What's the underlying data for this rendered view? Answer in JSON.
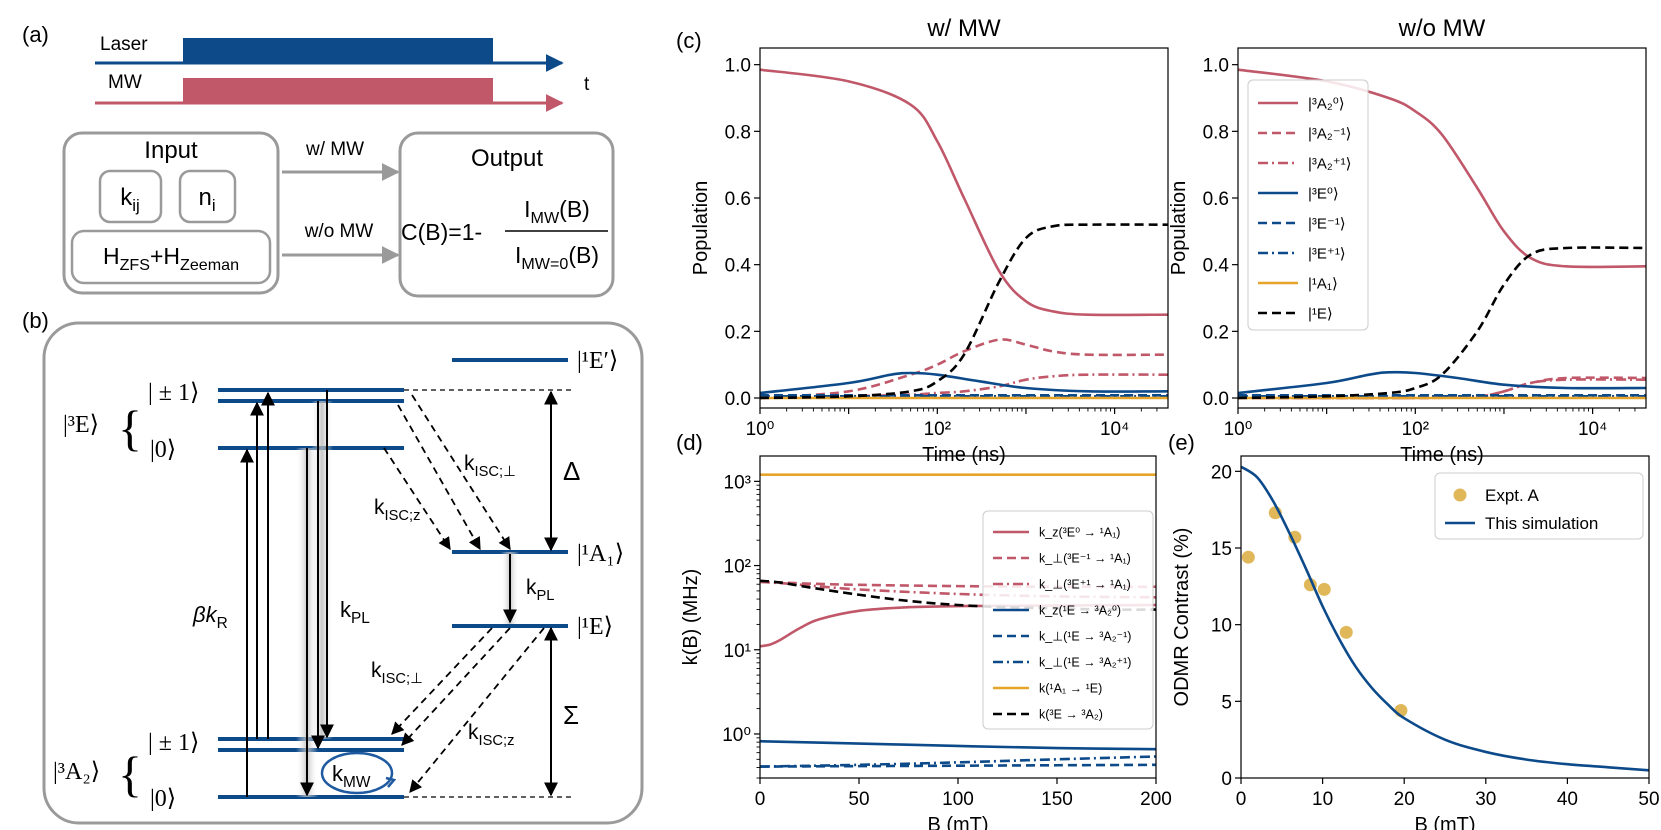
{
  "panel_labels": {
    "a": "(a)",
    "b": "(b)",
    "c": "(c)",
    "d": "(d)",
    "e": "(e)"
  },
  "panel_a": {
    "laser_label": "Laser",
    "mw_label": "MW",
    "time_label": "t",
    "input_title": "Input",
    "k_main": "k",
    "k_sub": "ij",
    "n_main": "n",
    "n_sub": "i",
    "h_main1": "H",
    "h_sub1": "ZFS",
    "h_plus": "+H",
    "h_sub2": "Zeeman",
    "arrow_with_mw": "w/ MW",
    "arrow_without_mw": "w/o MW",
    "output_title": "Output",
    "formula_left": "C(B)=1-",
    "num_main": "I",
    "num_sub": "MW",
    "num_tail": "(B)",
    "den_main": "I",
    "den_sub": "MW=0",
    "den_tail": "(B)",
    "colors": {
      "laser": "#0d4a8a",
      "mw": "#c0586a",
      "box": "#9a9a9a"
    }
  },
  "panel_b": {
    "lvl_3E": "|³E⟩",
    "lvl_3E_pm1": "| ± 1⟩",
    "lvl_3E_0": "|0⟩",
    "lvl_3A2": "|³A₂⟩",
    "lvl_3A2_pm1": "| ± 1⟩",
    "lvl_3A2_0": "|0⟩",
    "lvl_1Ep": "|¹E′⟩",
    "lvl_1A1": "|¹A₁⟩",
    "lvl_1E": "|¹E⟩",
    "k_isc_perp_top": "k",
    "k_isc_perp_top_sub": "ISC;⊥",
    "k_isc_z_top": "k",
    "k_isc_z_top_sub": "ISC;z",
    "delta": "Δ",
    "sigma": "Σ",
    "beta_kr": "βk",
    "beta_kr_sub": "R",
    "k_pl_left": "k",
    "k_pl_left_sub": "PL",
    "k_pl_right": "k",
    "k_pl_right_sub": "PL",
    "k_isc_perp_bot": "k",
    "k_isc_perp_bot_sub": "ISC;⊥",
    "k_isc_z_bot": "k",
    "k_isc_z_bot_sub": "ISC;z",
    "k_mw": "k",
    "k_mw_sub": "MW",
    "colors": {
      "level": "#0d4a8a"
    }
  },
  "chart_data": [
    {
      "id": "c_with_mw",
      "type": "line",
      "title": "w/ MW",
      "xlabel": "Time (ns)",
      "ylabel": "Population",
      "xscale": "log",
      "xlim": [
        1,
        40000
      ],
      "ylim": [
        -0.03,
        1.05
      ],
      "xticks": [
        1,
        100,
        10000
      ],
      "xtick_labels": [
        "10⁰",
        "10²",
        "10⁴"
      ],
      "yticks": [
        0.0,
        0.2,
        0.4,
        0.6,
        0.8,
        1.0
      ],
      "ytick_labels": [
        "0.0",
        "0.2",
        "0.4",
        "0.6",
        "0.8",
        "1.0"
      ],
      "series": [
        {
          "name": "|³A₂⁰⟩",
          "color": "#c0586a",
          "dash": "solid",
          "x": [
            1,
            10,
            50,
            100,
            200,
            500,
            1000,
            2000,
            5000,
            40000
          ],
          "y": [
            0.985,
            0.95,
            0.88,
            0.77,
            0.6,
            0.38,
            0.29,
            0.26,
            0.25,
            0.25
          ]
        },
        {
          "name": "|³A₂⁻¹⟩",
          "color": "#c0586a",
          "dash": "dash",
          "x": [
            1,
            10,
            50,
            100,
            200,
            500,
            1000,
            2000,
            5000,
            40000
          ],
          "y": [
            0.0,
            0.02,
            0.07,
            0.1,
            0.14,
            0.175,
            0.16,
            0.14,
            0.13,
            0.13
          ]
        },
        {
          "name": "|³A₂⁺¹⟩",
          "color": "#c0586a",
          "dash": "dashdot",
          "x": [
            1,
            10,
            50,
            100,
            200,
            500,
            1000,
            2000,
            5000,
            40000
          ],
          "y": [
            0.0,
            0.005,
            0.01,
            0.015,
            0.02,
            0.035,
            0.055,
            0.065,
            0.07,
            0.07
          ]
        },
        {
          "name": "|³E⁰⟩",
          "color": "#0d4a8a",
          "dash": "solid",
          "x": [
            1,
            10,
            30,
            50,
            100,
            300,
            1000,
            5000,
            40000
          ],
          "y": [
            0.015,
            0.045,
            0.07,
            0.075,
            0.07,
            0.05,
            0.03,
            0.02,
            0.02
          ]
        },
        {
          "name": "|³E⁻¹⟩",
          "color": "#0d4a8a",
          "dash": "dash",
          "x": [
            1,
            100,
            40000
          ],
          "y": [
            0.008,
            0.008,
            0.008
          ]
        },
        {
          "name": "|³E⁺¹⟩",
          "color": "#0d4a8a",
          "dash": "dashdot",
          "x": [
            1,
            100,
            40000
          ],
          "y": [
            0.005,
            0.005,
            0.005
          ]
        },
        {
          "name": "|¹A₁⟩",
          "color": "#e6a52a",
          "dash": "solid",
          "x": [
            1,
            40000
          ],
          "y": [
            0.0,
            0.0
          ]
        },
        {
          "name": "|¹E⟩",
          "color": "#000000",
          "dash": "dash",
          "x": [
            1,
            10,
            50,
            100,
            200,
            500,
            1000,
            2000,
            5000,
            40000
          ],
          "y": [
            0.0,
            0.005,
            0.02,
            0.05,
            0.13,
            0.35,
            0.48,
            0.515,
            0.52,
            0.52
          ]
        }
      ]
    },
    {
      "id": "c_without_mw",
      "type": "line",
      "title": "w/o MW",
      "xlabel": "Time (ns)",
      "ylabel": "Population",
      "xscale": "log",
      "xlim": [
        1,
        40000
      ],
      "ylim": [
        -0.03,
        1.05
      ],
      "xticks": [
        1,
        100,
        10000
      ],
      "xtick_labels": [
        "10⁰",
        "10²",
        "10⁴"
      ],
      "yticks": [
        0.0,
        0.2,
        0.4,
        0.6,
        0.8,
        1.0
      ],
      "ytick_labels": [
        "0.0",
        "0.2",
        "0.4",
        "0.6",
        "0.8",
        "1.0"
      ],
      "legend": "top-left",
      "series": [
        {
          "name": "|³A₂⁰⟩",
          "color": "#c0586a",
          "dash": "solid",
          "x": [
            1,
            10,
            50,
            100,
            200,
            500,
            1000,
            2000,
            5000,
            40000
          ],
          "y": [
            0.985,
            0.95,
            0.9,
            0.86,
            0.79,
            0.63,
            0.5,
            0.42,
            0.395,
            0.395
          ]
        },
        {
          "name": "|³A₂⁻¹⟩",
          "color": "#c0586a",
          "dash": "dash",
          "x": [
            1,
            100,
            500,
            1000,
            2000,
            5000,
            40000
          ],
          "y": [
            0.0,
            0.0,
            0.005,
            0.02,
            0.045,
            0.06,
            0.06
          ]
        },
        {
          "name": "|³A₂⁺¹⟩",
          "color": "#c0586a",
          "dash": "dashdot",
          "x": [
            1,
            100,
            500,
            1000,
            2000,
            5000,
            40000
          ],
          "y": [
            0.0,
            0.0,
            0.005,
            0.02,
            0.045,
            0.055,
            0.055
          ]
        },
        {
          "name": "|³E⁰⟩",
          "color": "#0d4a8a",
          "dash": "solid",
          "x": [
            1,
            10,
            30,
            50,
            100,
            300,
            1000,
            5000,
            40000
          ],
          "y": [
            0.015,
            0.045,
            0.07,
            0.077,
            0.075,
            0.06,
            0.04,
            0.03,
            0.03
          ]
        },
        {
          "name": "|³E⁻¹⟩",
          "color": "#0d4a8a",
          "dash": "dash",
          "x": [
            1,
            40000
          ],
          "y": [
            0.008,
            0.008
          ]
        },
        {
          "name": "|³E⁺¹⟩",
          "color": "#0d4a8a",
          "dash": "dashdot",
          "x": [
            1,
            40000
          ],
          "y": [
            0.005,
            0.005
          ]
        },
        {
          "name": "|¹A₁⟩",
          "color": "#e6a52a",
          "dash": "solid",
          "x": [
            1,
            40000
          ],
          "y": [
            0.0,
            0.0
          ]
        },
        {
          "name": "|¹E⟩",
          "color": "#000000",
          "dash": "dash",
          "x": [
            1,
            10,
            50,
            100,
            200,
            500,
            1000,
            2000,
            5000,
            40000
          ],
          "y": [
            0.0,
            0.005,
            0.015,
            0.03,
            0.07,
            0.2,
            0.34,
            0.43,
            0.45,
            0.45
          ]
        }
      ],
      "legend_labels": [
        "|³A₂⁰⟩",
        "|³A₂⁻¹⟩",
        "|³A₂⁺¹⟩",
        "|³E⁰⟩",
        "|³E⁻¹⟩",
        "|³E⁺¹⟩",
        "|¹A₁⟩",
        "|¹E⟩"
      ]
    },
    {
      "id": "d_rates",
      "type": "line",
      "xlabel": "B (mT)",
      "ylabel": "k(B) (MHz)",
      "yscale": "log",
      "xlim": [
        0,
        200
      ],
      "ylim": [
        0.3,
        2000
      ],
      "xticks": [
        0,
        50,
        100,
        150,
        200
      ],
      "xtick_labels": [
        "0",
        "50",
        "100",
        "150",
        "200"
      ],
      "yticks": [
        1,
        10,
        100,
        1000
      ],
      "ytick_labels": [
        "10⁰",
        "10¹",
        "10²",
        "10³"
      ],
      "legend": "right",
      "series": [
        {
          "name": "k_z(³E⁰ → ¹A₁)",
          "color": "#c0586a",
          "dash": "solid",
          "x": [
            0,
            5,
            10,
            20,
            30,
            50,
            75,
            100,
            150,
            200
          ],
          "y": [
            11,
            11.5,
            13,
            18,
            23,
            29,
            32,
            33,
            33.5,
            34
          ]
        },
        {
          "name": "k_⊥(³E⁻¹ → ¹A₁)",
          "color": "#c0586a",
          "dash": "dash",
          "x": [
            0,
            10,
            25,
            50,
            100,
            150,
            200
          ],
          "y": [
            64,
            63,
            61,
            59,
            57,
            56,
            56
          ]
        },
        {
          "name": "k_⊥(³E⁺¹ → ¹A₁)",
          "color": "#c0586a",
          "dash": "dashdot",
          "x": [
            0,
            10,
            25,
            50,
            100,
            150,
            200
          ],
          "y": [
            64,
            62,
            58,
            52,
            46,
            43,
            42
          ]
        },
        {
          "name": "k_z(¹E → ³A₂⁰)",
          "color": "#0d4a8a",
          "dash": "solid",
          "x": [
            0,
            50,
            100,
            150,
            200
          ],
          "y": [
            0.82,
            0.77,
            0.72,
            0.68,
            0.66
          ]
        },
        {
          "name": "k_⊥(¹E → ³A₂⁻¹)",
          "color": "#0d4a8a",
          "dash": "dash",
          "x": [
            0,
            50,
            100,
            150,
            200
          ],
          "y": [
            0.41,
            0.415,
            0.42,
            0.425,
            0.43
          ]
        },
        {
          "name": "k_⊥(¹E → ³A₂⁺¹)",
          "color": "#0d4a8a",
          "dash": "dashdot",
          "x": [
            0,
            50,
            100,
            150,
            200
          ],
          "y": [
            0.41,
            0.43,
            0.46,
            0.5,
            0.54
          ]
        },
        {
          "name": "k(¹A₁ → ¹E)",
          "color": "#e6a52a",
          "dash": "solid",
          "x": [
            0,
            200
          ],
          "y": [
            1200,
            1200
          ]
        },
        {
          "name": "k(³E → ³A₂)",
          "color": "#000000",
          "dash": "dash",
          "x": [
            0,
            10,
            25,
            50,
            75,
            100,
            125,
            150,
            175,
            200
          ],
          "y": [
            66,
            63,
            55,
            45,
            38,
            34,
            32,
            31,
            30,
            30
          ]
        }
      ],
      "legend_labels": [
        "k_z(³E⁰ → ¹A₁)",
        "k_⊥(³E⁻¹ → ¹A₁)",
        "k_⊥(³E⁺¹ → ¹A₁)",
        "k_z(¹E → ³A₂⁰)",
        "k_⊥(¹E → ³A₂⁻¹)",
        "k_⊥(¹E → ³A₂⁺¹)",
        "k(¹A₁ → ¹E)",
        "k(³E → ³A₂)"
      ]
    },
    {
      "id": "e_odmr",
      "type": "scatter",
      "xlabel": "B (mT)",
      "ylabel": "ODMR Contrast (%)",
      "xlim": [
        0,
        50
      ],
      "ylim": [
        0,
        21
      ],
      "xticks": [
        0,
        10,
        20,
        30,
        40,
        50
      ],
      "xtick_labels": [
        "0",
        "10",
        "20",
        "30",
        "40",
        "50"
      ],
      "yticks": [
        0,
        5,
        10,
        15,
        20
      ],
      "ytick_labels": [
        "0",
        "5",
        "10",
        "15",
        "20"
      ],
      "legend": "top-right",
      "series": [
        {
          "name": "Expt. A",
          "kind": "scatter",
          "color": "#e0b85a",
          "x": [
            0.9,
            4.2,
            6.6,
            8.5,
            10.2,
            12.9,
            19.6
          ],
          "y": [
            14.4,
            17.3,
            15.7,
            12.6,
            12.3,
            9.5,
            4.4
          ]
        },
        {
          "name": "This simulation",
          "kind": "line",
          "color": "#0d4a8a",
          "x": [
            0,
            2,
            4,
            6,
            8,
            10,
            12,
            14,
            16,
            18,
            20,
            25,
            30,
            35,
            40,
            45,
            50
          ],
          "y": [
            20.3,
            19.6,
            18.0,
            15.9,
            13.6,
            11.2,
            9.1,
            7.3,
            5.9,
            4.8,
            3.9,
            2.5,
            1.7,
            1.2,
            0.9,
            0.7,
            0.5
          ]
        }
      ],
      "legend_labels": [
        "Expt. A",
        "This simulation"
      ]
    }
  ]
}
